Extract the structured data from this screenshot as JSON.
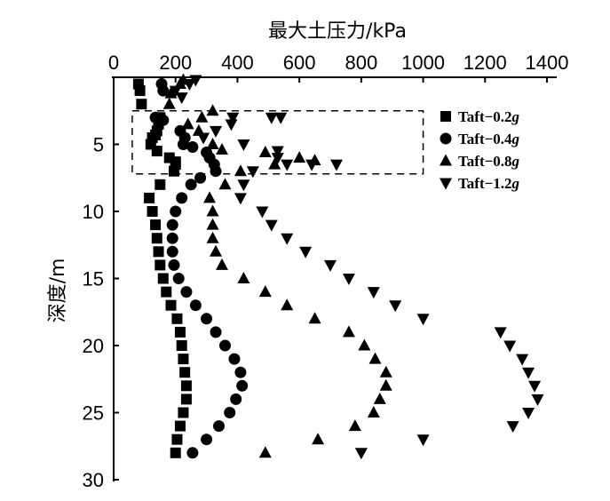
{
  "chart_data": {
    "type": "scatter",
    "title": "",
    "xlabel": "最大土压力/kPa",
    "ylabel": "深度/m",
    "xlim": [
      0,
      1400
    ],
    "ylim": [
      30,
      0
    ],
    "x_axis_position": "top",
    "y_reversed": true,
    "xticks": [
      "0",
      "200",
      "400",
      "600",
      "800",
      "1000",
      "1200",
      "1400"
    ],
    "yticks": [
      "5",
      "10",
      "15",
      "20",
      "25",
      "30"
    ],
    "grid": false,
    "legend_position": "right",
    "annotation": "dashed box spanning depth 2.5–7.2 m, pressure 60–1000 kPa",
    "series": [
      {
        "name": "Taft−0.2g",
        "marker": "square",
        "points": [
          [
            80,
            0.5
          ],
          [
            85,
            1
          ],
          [
            90,
            2
          ],
          [
            150,
            3
          ],
          [
            145,
            3.5
          ],
          [
            140,
            4
          ],
          [
            135,
            4.3
          ],
          [
            125,
            4.5
          ],
          [
            120,
            5
          ],
          [
            140,
            5.5
          ],
          [
            180,
            6
          ],
          [
            200,
            6.3
          ],
          [
            200,
            6.5
          ],
          [
            195,
            7
          ],
          [
            150,
            8
          ],
          [
            115,
            9
          ],
          [
            125,
            10
          ],
          [
            135,
            11
          ],
          [
            140,
            12
          ],
          [
            145,
            13
          ],
          [
            150,
            14
          ],
          [
            160,
            15
          ],
          [
            170,
            16
          ],
          [
            185,
            17
          ],
          [
            205,
            18
          ],
          [
            215,
            19
          ],
          [
            220,
            20
          ],
          [
            225,
            21
          ],
          [
            230,
            22
          ],
          [
            235,
            23
          ],
          [
            235,
            24
          ],
          [
            225,
            25
          ],
          [
            215,
            26
          ],
          [
            205,
            27
          ],
          [
            200,
            28
          ]
        ]
      },
      {
        "name": "Taft−0.4g",
        "marker": "circle",
        "points": [
          [
            155,
            0.5
          ],
          [
            160,
            1
          ],
          [
            135,
            3
          ],
          [
            160,
            3.2
          ],
          [
            215,
            4
          ],
          [
            230,
            4.5
          ],
          [
            225,
            5
          ],
          [
            255,
            5.2
          ],
          [
            300,
            5.6
          ],
          [
            310,
            6
          ],
          [
            325,
            6.5
          ],
          [
            330,
            7
          ],
          [
            280,
            7.5
          ],
          [
            250,
            8
          ],
          [
            220,
            9
          ],
          [
            200,
            10
          ],
          [
            190,
            11
          ],
          [
            190,
            12
          ],
          [
            190,
            13
          ],
          [
            195,
            14
          ],
          [
            210,
            15
          ],
          [
            235,
            16
          ],
          [
            265,
            17
          ],
          [
            300,
            18
          ],
          [
            330,
            19
          ],
          [
            360,
            20
          ],
          [
            390,
            21
          ],
          [
            410,
            22
          ],
          [
            415,
            23
          ],
          [
            395,
            24
          ],
          [
            375,
            25
          ],
          [
            340,
            26
          ],
          [
            300,
            27
          ],
          [
            255,
            28
          ]
        ]
      },
      {
        "name": "Taft−0.8g",
        "marker": "triangle-up",
        "points": [
          [
            225,
            0.2
          ],
          [
            215,
            0.5
          ],
          [
            185,
            1.2
          ],
          [
            180,
            2
          ],
          [
            320,
            2.5
          ],
          [
            285,
            3
          ],
          [
            240,
            3.5
          ],
          [
            275,
            4
          ],
          [
            320,
            5
          ],
          [
            350,
            5.4
          ],
          [
            490,
            5.6
          ],
          [
            600,
            6
          ],
          [
            650,
            6.2
          ],
          [
            520,
            6.5
          ],
          [
            410,
            7
          ],
          [
            360,
            8
          ],
          [
            310,
            9
          ],
          [
            320,
            10
          ],
          [
            320,
            11
          ],
          [
            320,
            12
          ],
          [
            330,
            13
          ],
          [
            350,
            14
          ],
          [
            420,
            15
          ],
          [
            490,
            16
          ],
          [
            560,
            17
          ],
          [
            650,
            18
          ],
          [
            760,
            19
          ],
          [
            810,
            20
          ],
          [
            845,
            21
          ],
          [
            880,
            22
          ],
          [
            880,
            23
          ],
          [
            860,
            24
          ],
          [
            840,
            25
          ],
          [
            780,
            26
          ],
          [
            660,
            27
          ],
          [
            490,
            28
          ]
        ]
      },
      {
        "name": "Taft−1.2g",
        "marker": "triangle-down",
        "points": [
          [
            265,
            0.2
          ],
          [
            245,
            0.5
          ],
          [
            200,
            1
          ],
          [
            220,
            1.5
          ],
          [
            385,
            3
          ],
          [
            510,
            3
          ],
          [
            540,
            3
          ],
          [
            380,
            3.5
          ],
          [
            330,
            4
          ],
          [
            290,
            4.5
          ],
          [
            420,
            5
          ],
          [
            530,
            5.5
          ],
          [
            530,
            6
          ],
          [
            560,
            6.5
          ],
          [
            640,
            6.5
          ],
          [
            720,
            6.5
          ],
          [
            450,
            7
          ],
          [
            420,
            8
          ],
          [
            410,
            9
          ],
          [
            480,
            10
          ],
          [
            510,
            11
          ],
          [
            560,
            12
          ],
          [
            620,
            13
          ],
          [
            700,
            14
          ],
          [
            760,
            15
          ],
          [
            840,
            16
          ],
          [
            910,
            17
          ],
          [
            1000,
            18
          ],
          [
            1250,
            19
          ],
          [
            1280,
            20
          ],
          [
            1320,
            21
          ],
          [
            1340,
            22
          ],
          [
            1360,
            23
          ],
          [
            1370,
            24
          ],
          [
            1340,
            25
          ],
          [
            1290,
            26
          ],
          [
            1000,
            27
          ],
          [
            800,
            28
          ]
        ]
      }
    ]
  }
}
